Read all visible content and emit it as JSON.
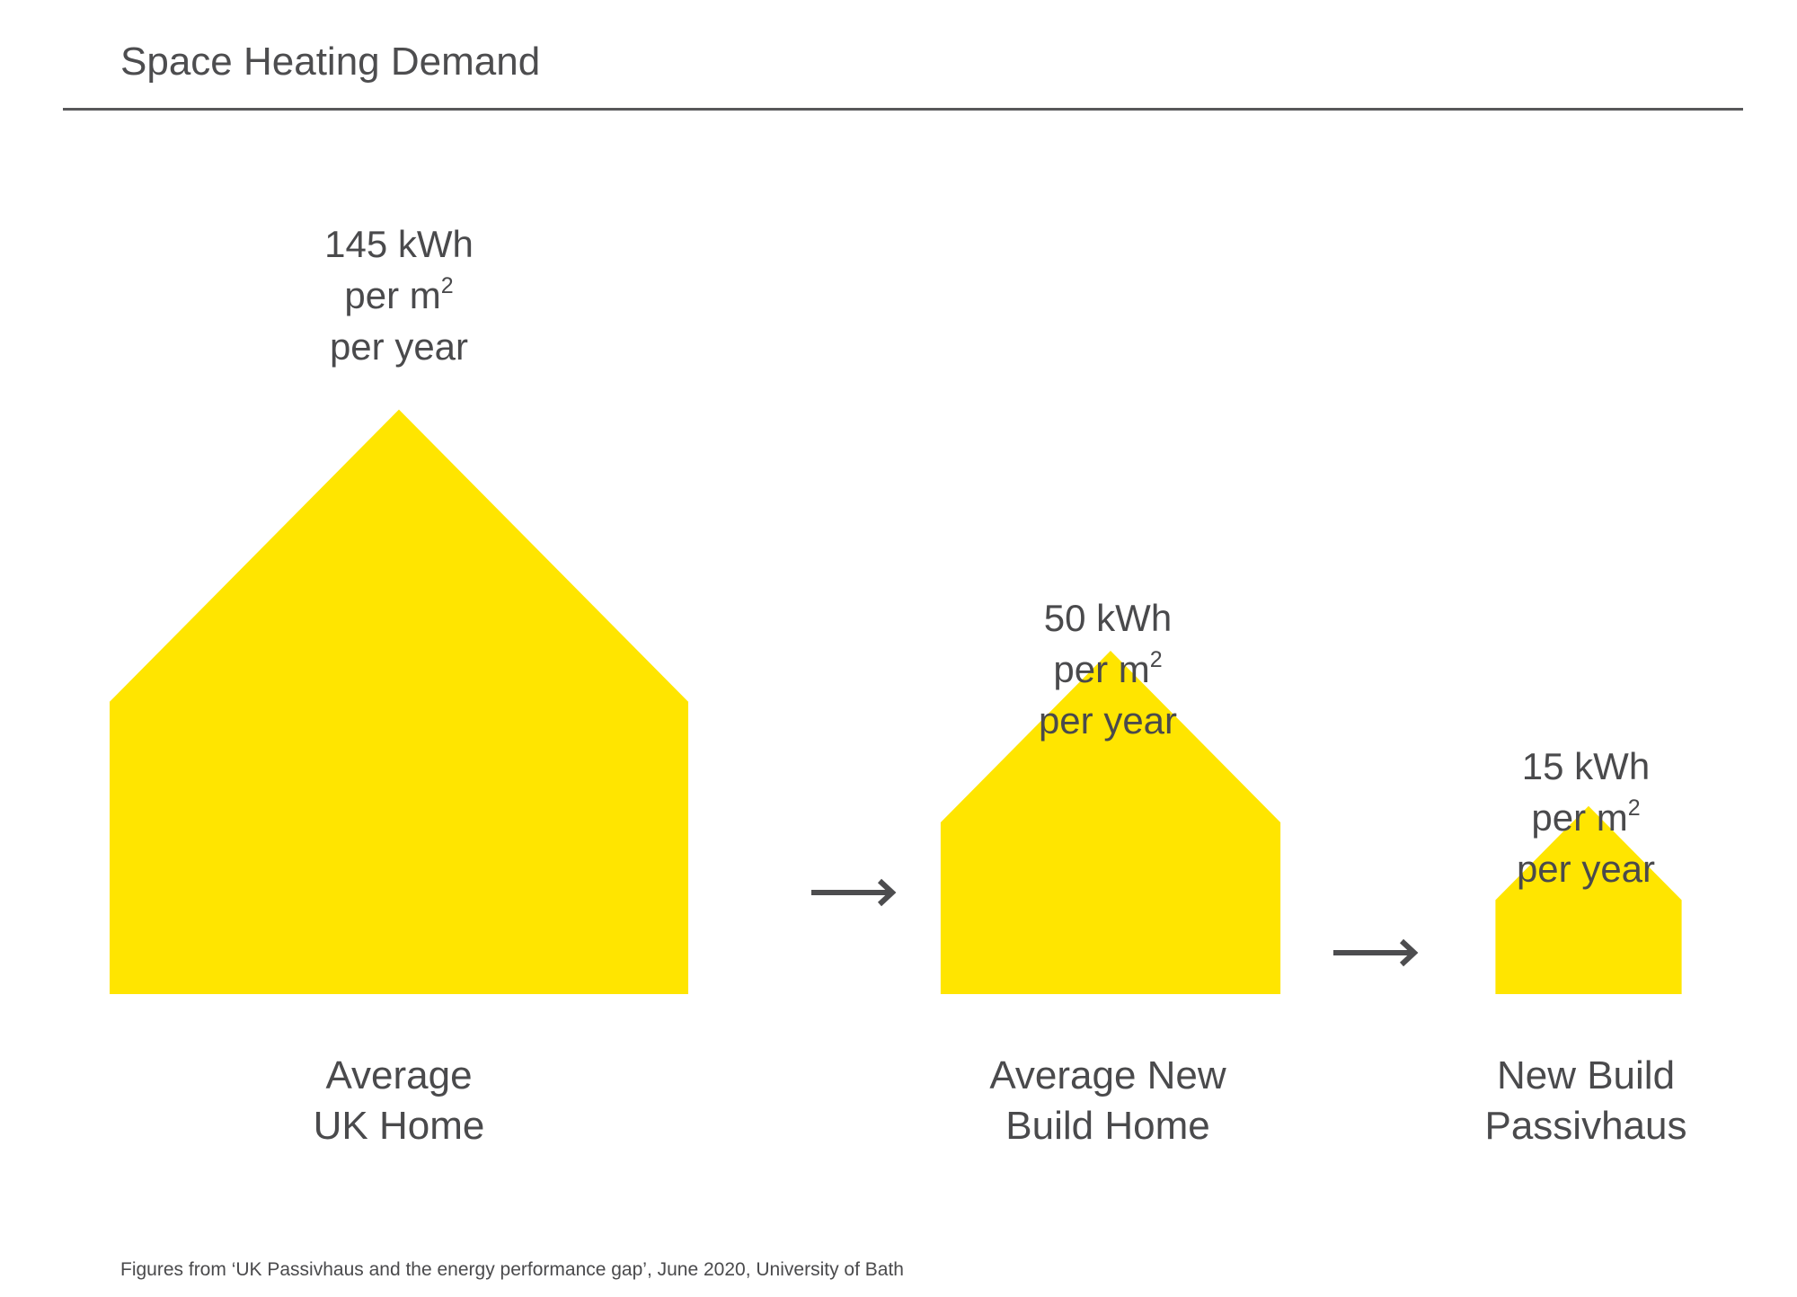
{
  "title": "Space Heating Demand",
  "source": "Figures from ‘UK Passivhaus and the energy performance gap’, June 2020, University of Bath",
  "colors": {
    "house_fill": "#FFE500",
    "text": "#4a4a4c",
    "arrow": "#4d4d4f",
    "rule": "#58585a"
  },
  "chart_data": {
    "type": "pictograph",
    "shape": "house",
    "unit": "kWh per m² per year",
    "categories": [
      "Average UK Home",
      "Average New Build Home",
      "New Build Passivhaus"
    ],
    "values": [
      145,
      50,
      15
    ],
    "items": [
      {
        "value": 145,
        "value_line1": "145 kWh",
        "value_line2": "per m",
        "value_sup": "2",
        "value_line3": "per year",
        "label_line1": "Average",
        "label_line2": "UK Home"
      },
      {
        "value": 50,
        "value_line1": "50 kWh",
        "value_line2": "per m",
        "value_sup": "2",
        "value_line3": "per year",
        "label_line1": "Average New",
        "label_line2": "Build Home"
      },
      {
        "value": 15,
        "value_line1": "15 kWh",
        "value_line2": "per m",
        "value_sup": "2",
        "value_line3": "per year",
        "label_line1": "New Build",
        "label_line2": "Passivhaus"
      }
    ],
    "arrows": [
      "arrow-right-icon",
      "arrow-right-icon"
    ]
  }
}
